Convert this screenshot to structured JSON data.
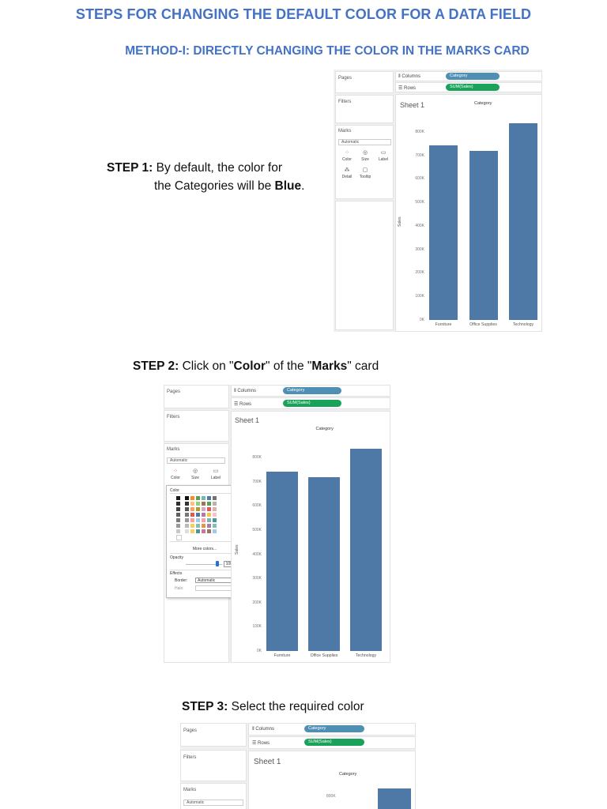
{
  "headings": {
    "title": "STEPS FOR CHANGING THE DEFAULT COLOR FOR A DATA FIELD",
    "method": "METHOD-I: DIRECTLY CHANGING THE COLOR IN THE MARKS CARD"
  },
  "steps": [
    {
      "label": "STEP 1:",
      "line1": "By default, the color for",
      "line2a": "the Categories will be ",
      "line2b": "Blue",
      "line2c": "."
    },
    {
      "label": "STEP 2:",
      "p1": "Click on \"",
      "b1": "Color",
      "p2": "\" of the \"",
      "b2": "Marks",
      "p3": "\" card"
    },
    {
      "label": "STEP 3:",
      "text": "Select the required color"
    }
  ],
  "tableau": {
    "pages": "Pages",
    "filters": "Filters",
    "marks": "Marks",
    "columns_label": "Columns",
    "rows_label": "Rows",
    "columns_pill": "Category",
    "rows_pill": "SUM(Sales)",
    "sheet_title": "Sheet 1",
    "chart_title": "Category",
    "mark_type": "Automatic",
    "buttons": [
      "Color",
      "Size",
      "Label",
      "Detail",
      "Tooltip"
    ],
    "y_axis_label": "Sales",
    "y_ticks": [
      "800K",
      "700K",
      "600K",
      "500K",
      "400K",
      "300K",
      "200K",
      "100K",
      "0K"
    ],
    "popup": {
      "color": "Color",
      "more_colors": "More colors...",
      "opacity": "Opacity",
      "opacity_value": "100%",
      "effects": "Effects",
      "border_label": "Border:",
      "border_value": "Automatic",
      "halo_label": "Halo:"
    }
  },
  "chart_data": {
    "type": "bar",
    "title": "Category",
    "xlabel": "",
    "ylabel": "Sales",
    "categories": [
      "Furniture",
      "Office Supplies",
      "Technology"
    ],
    "values": [
      742000,
      719000,
      836000
    ],
    "ylim": [
      0,
      850000
    ],
    "bar_color": "#4e79a7"
  },
  "colors": {
    "heading": "#4472c4",
    "bar": "#4e79a7",
    "pill_columns": "#4e8fb3",
    "pill_rows": "#1ba25a"
  }
}
